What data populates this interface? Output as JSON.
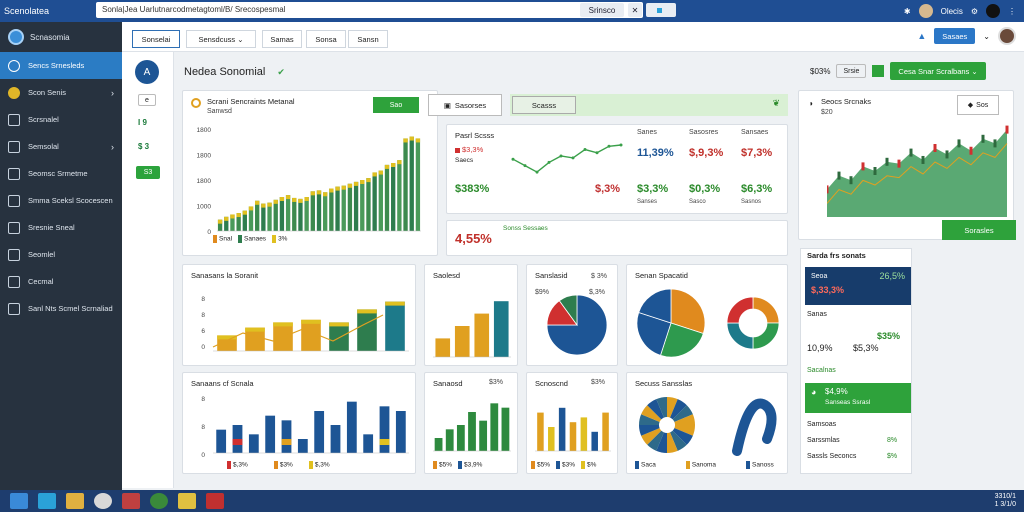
{
  "browser": {
    "brand": "Scenolatea",
    "address": "Sonla|Jea Uarlutnarcodmetagtoml/B/ Srecospesmal",
    "tab_a": "Srinsco",
    "tab_b": "Ceose",
    "top_right_label": "Olecis"
  },
  "sidebar": {
    "logo_text": "Scnasomia",
    "items": [
      {
        "label": "Sencs Srnesleds",
        "icon": "dashboard-icon",
        "active": true
      },
      {
        "label": "Scon Senis",
        "icon": "coin-icon",
        "chevron": true
      },
      {
        "label": "Scrsnalel",
        "icon": "car-icon"
      },
      {
        "label": "Semsolal",
        "icon": "folder-icon",
        "chevron": true
      },
      {
        "label": "Seomsc Srmetme",
        "icon": "monitor-icon"
      },
      {
        "label": "Smma Sceksl Scocescen",
        "icon": "window-icon"
      },
      {
        "label": "Sresnie Sneal",
        "icon": "settings-icon"
      },
      {
        "label": "Seomlel",
        "icon": "clock-icon"
      },
      {
        "label": "Cecmal",
        "icon": "history-icon"
      },
      {
        "label": "Sanl Nts Scmel Scrnaliad",
        "icon": "calendar-icon"
      }
    ]
  },
  "subcol": {
    "btn_icon": "A",
    "mini": "e",
    "val1": "I 9",
    "val2": "$ 3",
    "green_label": "S3"
  },
  "nav": {
    "tabs": [
      "Sonselai",
      "Sensdcuss",
      "Samas",
      "Sonsa",
      "Sansn"
    ],
    "right_btn": "Sasaes"
  },
  "header": {
    "title": "Nedea Sonomial",
    "right_value": "$03%",
    "right_pill": "Srsie",
    "right_btn": "Cesa Snar Scralbans"
  },
  "card1": {
    "title": "Scrani Sencraints Metanal",
    "subtitle": "Sanwsd",
    "btn_label": "Sao",
    "y_ticks": [
      "1800",
      "1800",
      "1800",
      "1000",
      "0"
    ],
    "legend": [
      "Snal",
      "Sanaes",
      "3%"
    ],
    "chart_data": {
      "type": "bar",
      "values": [
        120,
        150,
        175,
        190,
        215,
        260,
        320,
        290,
        300,
        330,
        360,
        380,
        350,
        340,
        360,
        420,
        430,
        410,
        450,
        470,
        480,
        500,
        520,
        540,
        560,
        620,
        640,
        700,
        720,
        750,
        980,
        1000,
        980
      ],
      "ylim": [
        0,
        1800
      ]
    }
  },
  "toolbar": {
    "btn1": "Sasorses",
    "btn2": "Scasss"
  },
  "card2": {
    "title": "Pasrl Scsss",
    "row1_red": "$3,3%",
    "row1_small": "Saecs",
    "kpi_left": "$383%",
    "kpi_mid": "$,3%",
    "col_headers": [
      "Sanes",
      "Sasosres",
      "Sansaes"
    ],
    "kpi_row1": [
      "11,39%",
      "$,9,3%",
      "$7,3%"
    ],
    "kpi_row2": [
      "$3,3%",
      "$0,3%",
      "$6,3%"
    ],
    "small": [
      "Sanses",
      "Sasco",
      "Sasnos"
    ],
    "chart_data": {
      "type": "line",
      "values": [
        40,
        30,
        20,
        35,
        45,
        42,
        55,
        50,
        60,
        62
      ]
    }
  },
  "card3": {
    "kpi": "4,55%",
    "label": "Sonss Sessaes"
  },
  "card4": {
    "title": "Seocs Srcnaks",
    "button": "Sos",
    "sub": "$20",
    "bottom_btn": "Sorasles",
    "chart_data": {
      "type": "area",
      "values": [
        30,
        45,
        40,
        55,
        50,
        60,
        58,
        70,
        62,
        75,
        68,
        80,
        72,
        85,
        80,
        95
      ]
    }
  },
  "card5": {
    "title": "Sanasans la Soranit",
    "y_ticks": [
      "8",
      "8",
      "6",
      "0"
    ],
    "chart_data": {
      "type": "bar",
      "values": [
        30,
        45,
        55,
        60,
        55,
        80,
        95
      ]
    }
  },
  "card6": {
    "title": "Saolesd",
    "chart_data": {
      "type": "bar",
      "values": [
        30,
        50,
        70,
        90
      ]
    }
  },
  "card7": {
    "title": "Sanslasid",
    "value": "$ 3%",
    "sub1": "$9%",
    "sub2": "$,3%",
    "chart_data": {
      "type": "pie",
      "values": [
        75,
        15,
        10
      ]
    }
  },
  "card8": {
    "title": "Senan Spacatid",
    "chart_data": {
      "type": "pie",
      "values": [
        30,
        25,
        25,
        20
      ]
    }
  },
  "card9": {
    "title": "Sanaans cf Scnala",
    "y_ticks": [
      "8",
      "8",
      "0"
    ],
    "legend": [
      "$,3%",
      "$3%",
      "$,3%"
    ],
    "chart_data": {
      "type": "bar",
      "values": [
        25,
        30,
        20,
        40,
        35,
        15,
        45,
        30,
        55,
        20,
        50,
        45
      ]
    }
  },
  "card10": {
    "title": "Sanaosd",
    "value": "$3%",
    "legend": [
      "$5%",
      "$3,9%"
    ],
    "chart_data": {
      "type": "bar",
      "values": [
        15,
        25,
        30,
        45,
        35,
        55,
        50
      ]
    }
  },
  "card11": {
    "title": "Scnoscnd",
    "value": "$3%",
    "legend": [
      "$5%",
      "$3%",
      "$%"
    ],
    "chart_data": {
      "type": "bar",
      "values": [
        40,
        25,
        45,
        30,
        35,
        20,
        40
      ]
    }
  },
  "card12": {
    "title": "Secuss Sansslas",
    "legend": [
      "Saca",
      "Sanoma",
      "Sanoss"
    ]
  },
  "right_panel": {
    "title": "Sarda frs sonats",
    "dark_card": {
      "label": "Seoa",
      "value": "26,5%",
      "red": "$,33,3%",
      "sub": "Sanalal"
    },
    "row1_label": "Sanas",
    "row1_value": "$35%",
    "row2_left": "10,9%",
    "row2_right": "$5,3%",
    "green_row": "Sacalnas",
    "green_card": {
      "title": "$4,9%",
      "label": "Sanseas Ssrasl"
    },
    "list": [
      {
        "label": "Samsoas",
        "value": ""
      },
      {
        "label": "Sarssmlas",
        "value": "8%"
      },
      {
        "label": "Sassls Seconcs",
        "value": "$%"
      }
    ]
  },
  "taskbar": {
    "time": "3310/1",
    "date": "1 3/1/0"
  }
}
